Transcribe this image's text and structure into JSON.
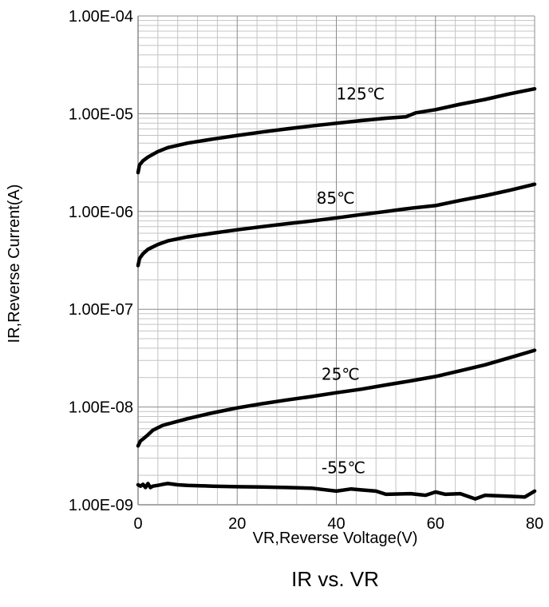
{
  "chart_data": {
    "type": "line",
    "title": "IR vs. VR",
    "xlabel": "VR,Reverse Voltage(V)",
    "ylabel": "IR,Reverse Current(A)",
    "xlim": [
      0,
      80
    ],
    "ylim": [
      1e-09,
      0.0001
    ],
    "yscale": "log",
    "grid": true,
    "x_ticks": [
      0,
      20,
      40,
      60,
      80
    ],
    "x_tick_labels": [
      "0",
      "20",
      "40",
      "60",
      "80"
    ],
    "y_ticks": [
      1e-09,
      1e-08,
      1e-07,
      1e-06,
      1e-05,
      0.0001
    ],
    "y_tick_labels": [
      "1.00E-09",
      "1.00E-08",
      "1.00E-07",
      "1.00E-06",
      "1.00E-05",
      "1.00E-04"
    ],
    "series": [
      {
        "name": "125℃",
        "x": [
          0,
          0.3,
          1,
          2,
          4,
          6,
          10,
          15,
          20,
          25,
          30,
          35,
          40,
          45,
          50,
          54,
          56,
          60,
          65,
          70,
          75,
          80
        ],
        "y": [
          2.5e-06,
          3e-06,
          3.3e-06,
          3.6e-06,
          4.1e-06,
          4.5e-06,
          5e-06,
          5.5e-06,
          6e-06,
          6.5e-06,
          7e-06,
          7.5e-06,
          8e-06,
          8.5e-06,
          9e-06,
          9.3e-06,
          1.02e-05,
          1.1e-05,
          1.25e-05,
          1.4e-05,
          1.6e-05,
          1.8e-05
        ]
      },
      {
        "name": "85℃",
        "x": [
          0,
          0.3,
          1,
          2,
          4,
          6,
          10,
          15,
          20,
          25,
          30,
          35,
          40,
          45,
          50,
          55,
          60,
          65,
          70,
          75,
          80
        ],
        "y": [
          2.8e-07,
          3.3e-07,
          3.7e-07,
          4.1e-07,
          4.6e-07,
          5e-07,
          5.5e-07,
          6e-07,
          6.5e-07,
          7e-07,
          7.5e-07,
          8e-07,
          8.6e-07,
          9.3e-07,
          1e-06,
          1.08e-06,
          1.15e-06,
          1.3e-06,
          1.45e-06,
          1.65e-06,
          1.9e-06
        ]
      },
      {
        "name": "25℃",
        "x": [
          0,
          0.5,
          1,
          2,
          3,
          5,
          10,
          15,
          20,
          25,
          30,
          35,
          40,
          45,
          50,
          55,
          60,
          65,
          70,
          75,
          80
        ],
        "y": [
          4e-09,
          4.5e-09,
          4.7e-09,
          5.2e-09,
          5.8e-09,
          6.5e-09,
          7.6e-09,
          8.7e-09,
          9.8e-09,
          1.08e-08,
          1.18e-08,
          1.28e-08,
          1.4e-08,
          1.52e-08,
          1.68e-08,
          1.85e-08,
          2.05e-08,
          2.35e-08,
          2.7e-08,
          3.2e-08,
          3.8e-08
        ]
      },
      {
        "name": "-55℃",
        "x": [
          0,
          0.5,
          1,
          1.5,
          2,
          2.5,
          3,
          4,
          5,
          6,
          8,
          10,
          15,
          20,
          25,
          30,
          35,
          40,
          43,
          45,
          48,
          50,
          55,
          58,
          60,
          62,
          65,
          68,
          70,
          75,
          78,
          80
        ],
        "y": [
          1.6e-09,
          1.55e-09,
          1.62e-09,
          1.5e-09,
          1.65e-09,
          1.5e-09,
          1.55e-09,
          1.58e-09,
          1.62e-09,
          1.65e-09,
          1.6e-09,
          1.58e-09,
          1.55e-09,
          1.53e-09,
          1.52e-09,
          1.5e-09,
          1.48e-09,
          1.38e-09,
          1.45e-09,
          1.42e-09,
          1.38e-09,
          1.28e-09,
          1.3e-09,
          1.25e-09,
          1.35e-09,
          1.28e-09,
          1.3e-09,
          1.15e-09,
          1.25e-09,
          1.22e-09,
          1.2e-09,
          1.38e-09
        ]
      }
    ],
    "series_label_positions": [
      {
        "name": "125℃",
        "x": 40,
        "y": 1.4e-05
      },
      {
        "name": "85℃",
        "x": 36,
        "y": 1.2e-06
      },
      {
        "name": "25℃",
        "x": 37,
        "y": 1.9e-08
      },
      {
        "name": "-55℃",
        "x": 37,
        "y": 2.1e-09
      }
    ]
  }
}
